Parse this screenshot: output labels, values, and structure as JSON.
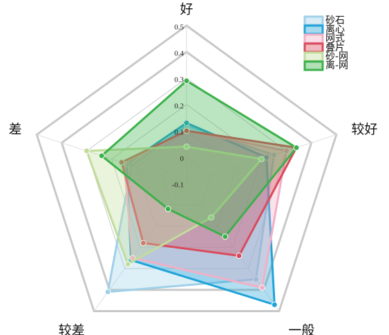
{
  "chart_data": {
    "type": "radar",
    "categories": [
      "好",
      "较好",
      "一般",
      "较差",
      "差"
    ],
    "ylim": [
      -0.1,
      0.5
    ],
    "yticks": [
      -0.1,
      0.0,
      0.1,
      0.2,
      0.3,
      0.4,
      0.5
    ],
    "series": [
      {
        "name": "砂石",
        "color": "#9fd0e8",
        "values": [
          0.12,
          0.25,
          0.35,
          0.41,
          0.12
        ]
      },
      {
        "name": "离心",
        "color": "#1fa3d8",
        "values": [
          0.13,
          0.22,
          0.47,
          0.26,
          0.14
        ]
      },
      {
        "name": "网式",
        "color": "#f0b0c6",
        "values": [
          0.1,
          0.3,
          0.39,
          0.25,
          0.15
        ]
      },
      {
        "name": "叠片",
        "color": "#d94b5c",
        "values": [
          0.1,
          0.34,
          0.24,
          0.18,
          0.16
        ]
      },
      {
        "name": "砂-网",
        "color": "#c2dc9c",
        "values": [
          0.04,
          0.2,
          0.06,
          0.28,
          0.3
        ]
      },
      {
        "name": "离-网",
        "color": "#3bb14a",
        "values": [
          0.29,
          0.34,
          0.15,
          0.02,
          0.24
        ]
      }
    ]
  }
}
